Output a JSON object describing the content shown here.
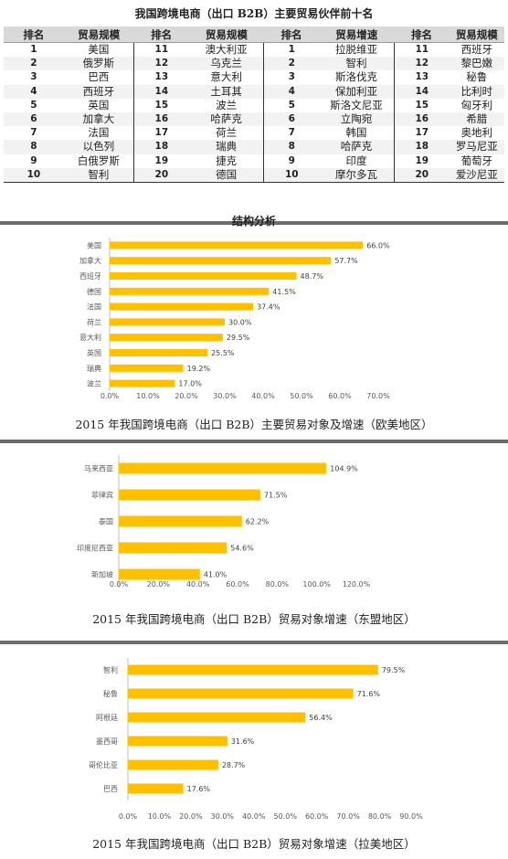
{
  "table": {
    "title": "我国跨境电商（出口 B2B）主要贸易伙伴前十名",
    "headers": [
      "排名",
      "贸易规模",
      "排名",
      "贸易规模",
      "排名",
      "贸易增速",
      "排名",
      "贸易规模"
    ],
    "rows": [
      [
        "1",
        "美国",
        "11",
        "澳大利亚",
        "1",
        "拉脱维亚",
        "11",
        "西班牙"
      ],
      [
        "2",
        "俄罗斯",
        "12",
        "乌克兰",
        "2",
        "智利",
        "12",
        "黎巴嫩"
      ],
      [
        "3",
        "巴西",
        "13",
        "意大利",
        "3",
        "斯洛伐克",
        "13",
        "秘鲁"
      ],
      [
        "4",
        "西班牙",
        "14",
        "土耳其",
        "4",
        "保加利亚",
        "14",
        "比利时"
      ],
      [
        "5",
        "英国",
        "15",
        "波兰",
        "5",
        "斯洛文尼亚",
        "15",
        "匈牙利"
      ],
      [
        "6",
        "加拿大",
        "16",
        "哈萨克",
        "6",
        "立陶宛",
        "16",
        "希腊"
      ],
      [
        "7",
        "法国",
        "17",
        "荷兰",
        "7",
        "韩国",
        "17",
        "奥地利"
      ],
      [
        "8",
        "以色列",
        "18",
        "瑞典",
        "8",
        "哈萨克",
        "18",
        "罗马尼亚"
      ],
      [
        "9",
        "白俄罗斯",
        "19",
        "捷克",
        "9",
        "印度",
        "19",
        "葡萄牙"
      ],
      [
        "10",
        "智利",
        "20",
        "德国",
        "10",
        "摩尔多瓦",
        "20",
        "爱沙尼亚"
      ]
    ]
  },
  "section_title": "结构分析",
  "chart_data": [
    {
      "type": "bar",
      "orientation": "horizontal",
      "categories": [
        "美国",
        "加拿大",
        "西班牙",
        "德国",
        "法国",
        "荷兰",
        "意大利",
        "英国",
        "瑞典",
        "波兰"
      ],
      "values": [
        66.0,
        57.7,
        48.7,
        41.5,
        37.4,
        30.0,
        29.5,
        25.5,
        19.2,
        17.0
      ],
      "value_labels": [
        "66.0%",
        "57.7%",
        "48.7%",
        "41.5%",
        "37.4%",
        "30.0%",
        "29.5%",
        "25.5%",
        "19.2%",
        "17.0%"
      ],
      "xlim": [
        0,
        70
      ],
      "xticks": [
        "0.0%",
        "10.0%",
        "20.0%",
        "30.0%",
        "40.0%",
        "50.0%",
        "60.0%",
        "70.0%"
      ],
      "title": "2015 年我国跨境电商（出口 B2B）主要贸易对象及增速（欧美地区）",
      "grid": false,
      "color": "#FFC000"
    },
    {
      "type": "bar",
      "orientation": "horizontal",
      "categories": [
        "马来西亚",
        "菲律宾",
        "泰国",
        "印度尼西亚",
        "新加坡"
      ],
      "values": [
        104.9,
        71.5,
        62.2,
        54.6,
        41.0
      ],
      "value_labels": [
        "104.9%",
        "71.5%",
        "62.2%",
        "54.6%",
        "41.0%"
      ],
      "xlim": [
        0,
        120
      ],
      "xticks": [
        "0.0%",
        "20.0%",
        "40.0%",
        "60.0%",
        "80.0%",
        "100.0%",
        "120.0%"
      ],
      "title": "2015 年我国跨境电商（出口 B2B）贸易对象增速（东盟地区）",
      "grid": false,
      "color": "#FFC000"
    },
    {
      "type": "bar",
      "orientation": "horizontal",
      "categories": [
        "智利",
        "秘鲁",
        "阿根廷",
        "墨西哥",
        "哥伦比亚",
        "巴西"
      ],
      "values": [
        79.5,
        71.6,
        56.4,
        31.6,
        28.7,
        17.6
      ],
      "value_labels": [
        "79.5%",
        "71.6%",
        "56.4%",
        "31.6%",
        "28.7%",
        "17.6%"
      ],
      "xlim": [
        0,
        90
      ],
      "xticks": [
        "0.0%",
        "10.0%",
        "20.0%",
        "30.0%",
        "40.0%",
        "50.0%",
        "60.0%",
        "70.0%",
        "80.0%",
        "90.0%"
      ],
      "title": "2015 年我国跨境电商（出口 B2B）贸易对象增速（拉美地区）",
      "grid": false,
      "color": "#FFC000"
    }
  ]
}
